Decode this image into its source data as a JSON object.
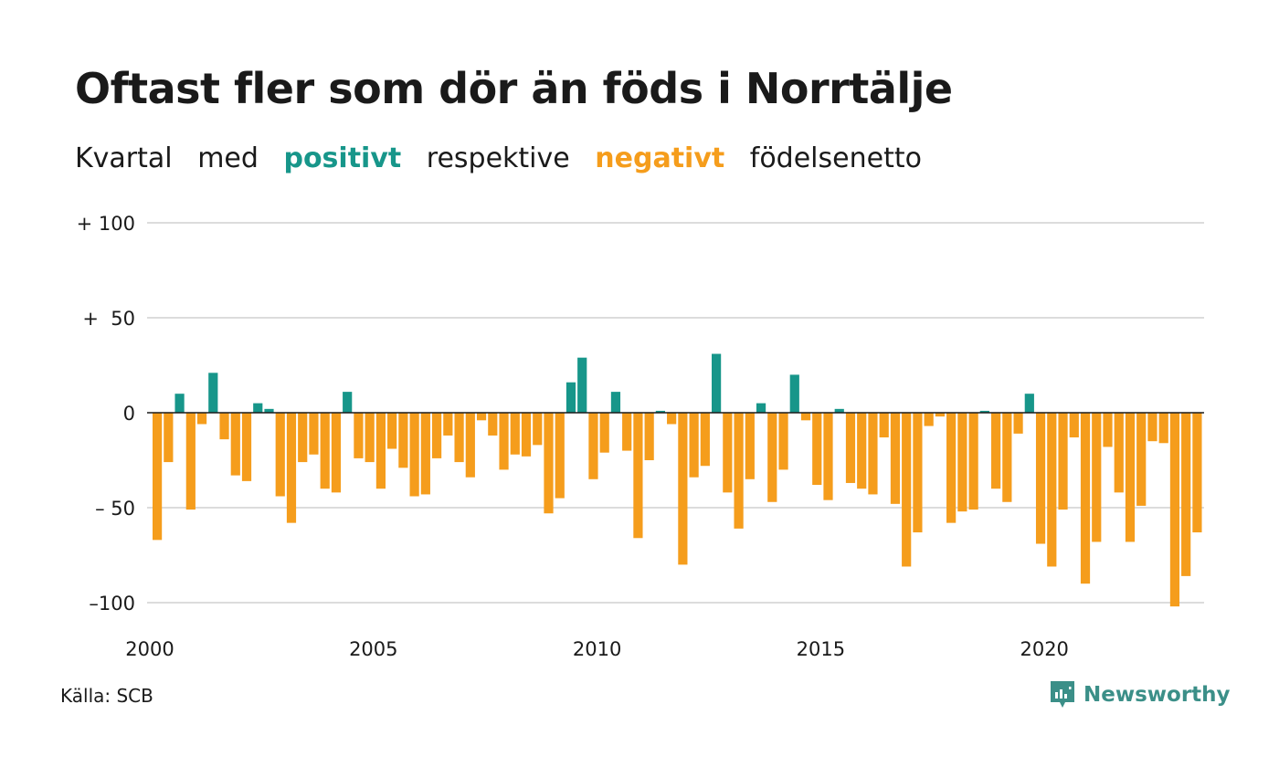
{
  "title": "Oftast fler som dör än föds i Norrtälje",
  "subtitle": {
    "part1": "Kvartal",
    "part2": "med",
    "positive": "positivt",
    "part3": "respektive",
    "negative": "negativt",
    "part4": "födelsenetto"
  },
  "source": "Källa: SCB",
  "logo_text": "Newsworthy",
  "colors": {
    "positive": "#17968a",
    "negative": "#f59d1c",
    "grid": "#dcdcdc",
    "baseline": "#1a1a1a",
    "logo": "#3b8f88"
  },
  "chart_data": {
    "type": "bar",
    "title": "Oftast fler som dör än föds i Norrtälje",
    "subtitle": "Kvartal med positivt respektive negativt födelsenetto",
    "x_start": "2000 Q1",
    "x_tick_labels": [
      "2000",
      "2005",
      "2010",
      "2015",
      "2020"
    ],
    "y_tick_labels": [
      "+ 100",
      "+  50",
      "0",
      "– 50",
      "–100"
    ],
    "y_ticks": [
      100,
      50,
      0,
      -50,
      -100
    ],
    "ylim": [
      -100,
      100
    ],
    "grid": true,
    "values": [
      -67,
      -26,
      10,
      -51,
      -6,
      21,
      -14,
      -33,
      -36,
      5,
      2,
      -44,
      -58,
      -26,
      -22,
      -40,
      -42,
      11,
      -24,
      -26,
      -40,
      -19,
      -29,
      -44,
      -43,
      -24,
      -12,
      -26,
      -34,
      -4,
      -12,
      -30,
      -22,
      -23,
      -17,
      -53,
      -45,
      16,
      29,
      -35,
      -21,
      11,
      -20,
      -66,
      -25,
      1,
      -6,
      -80,
      -34,
      -28,
      31,
      -42,
      -61,
      -35,
      5,
      -47,
      -30,
      20,
      -4,
      -38,
      -46,
      2,
      -37,
      -40,
      -43,
      -13,
      -48,
      -81,
      -63,
      -7,
      -2,
      -58,
      -52,
      -51,
      1,
      -40,
      -47,
      -11,
      10,
      -69,
      -81,
      -51,
      -13,
      -90,
      -68,
      -18,
      -42,
      -68,
      -49,
      -15,
      -16,
      -102,
      -86,
      -63
    ]
  }
}
